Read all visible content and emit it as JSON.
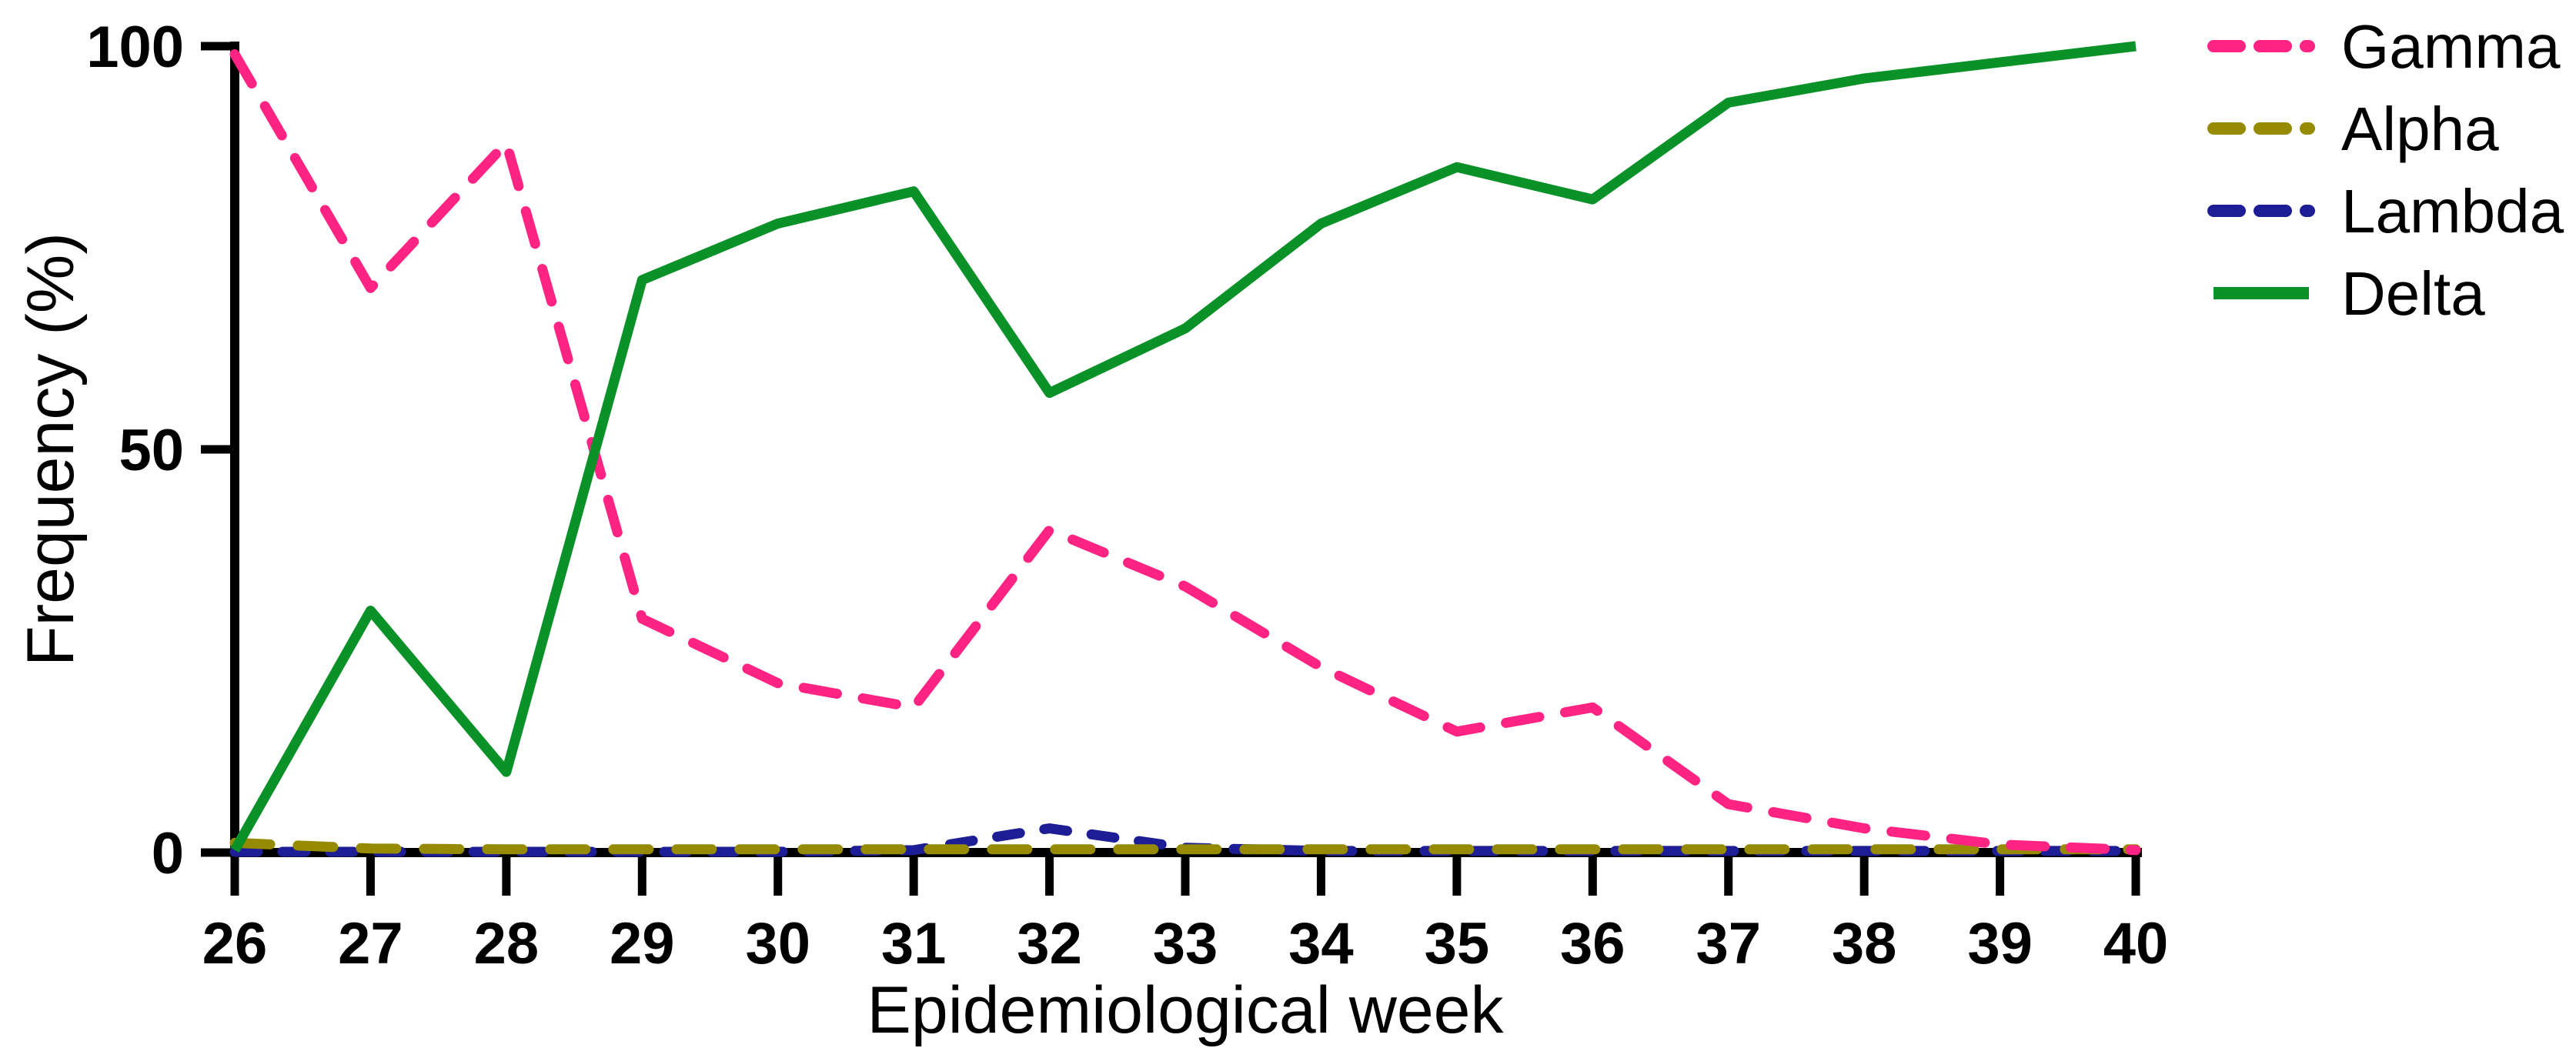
{
  "figure": {
    "background_color": "#ffffff",
    "axis_color": "#000000"
  },
  "chart_data": {
    "type": "line",
    "title": "",
    "xlabel": "Epidemiological week",
    "ylabel": "Frequency (%)",
    "x": [
      26,
      27,
      28,
      29,
      30,
      31,
      32,
      33,
      34,
      35,
      36,
      37,
      38,
      39,
      40
    ],
    "ylim": [
      0,
      100
    ],
    "y_ticks": [
      0,
      50,
      100
    ],
    "grid": false,
    "legend_position": "outside-top-right",
    "series": [
      {
        "name": "Gamma",
        "color": "#FF2483",
        "style": "dashed",
        "values": [
          99,
          70,
          88,
          29,
          21,
          18,
          40,
          33,
          23,
          15,
          18,
          6,
          3,
          1,
          0.3
        ]
      },
      {
        "name": "Alpha",
        "color": "#968B00",
        "style": "dashed",
        "values": [
          1.2,
          0.5,
          0.4,
          0.4,
          0.4,
          0.4,
          0.4,
          0.4,
          0.4,
          0.4,
          0.4,
          0.4,
          0.4,
          0.4,
          0.4
        ]
      },
      {
        "name": "Lambda",
        "color": "#1D1D96",
        "style": "dashed",
        "values": [
          0.1,
          0.1,
          0.1,
          0.1,
          0.1,
          0.3,
          3,
          0.6,
          0.2,
          0.2,
          0.2,
          0.2,
          0.2,
          0.2,
          0.2
        ]
      },
      {
        "name": "Delta",
        "color": "#0A9128",
        "style": "solid",
        "values": [
          0.3,
          30,
          10,
          71,
          78,
          82,
          57,
          65,
          78,
          85,
          81,
          93,
          96,
          98,
          100
        ]
      }
    ]
  }
}
